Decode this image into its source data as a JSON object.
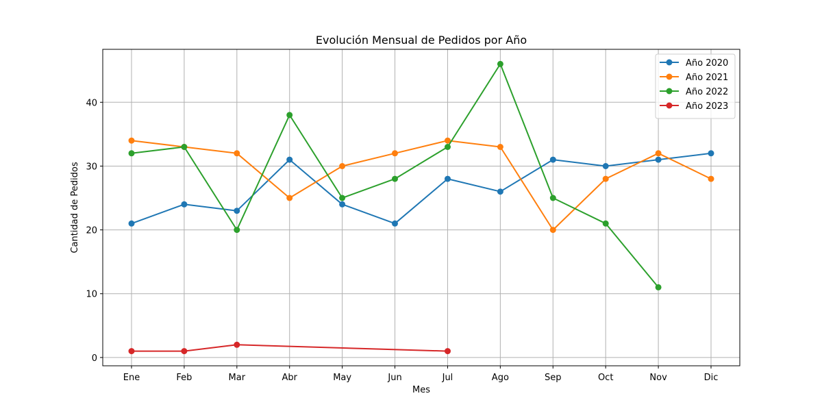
{
  "chart_data": {
    "type": "line",
    "title": "Evolución Mensual de Pedidos por Año",
    "xlabel": "Mes",
    "ylabel": "Cantidad de Pedidos",
    "categories": [
      "Ene",
      "Feb",
      "Mar",
      "Abr",
      "May",
      "Jun",
      "Jul",
      "Ago",
      "Sep",
      "Oct",
      "Nov",
      "Dic"
    ],
    "ylim": [
      -1.3,
      48.3
    ],
    "yticks": [
      0,
      10,
      20,
      30,
      40
    ],
    "grid": true,
    "legend_position": "top-right",
    "series": [
      {
        "name": "Año 2020",
        "color": "#1f77b4",
        "values": [
          21,
          24,
          23,
          31,
          24,
          21,
          28,
          26,
          31,
          30,
          31,
          32
        ]
      },
      {
        "name": "Año 2021",
        "color": "#ff7f0e",
        "values": [
          34,
          33,
          32,
          25,
          30,
          32,
          34,
          33,
          20,
          28,
          32,
          28
        ]
      },
      {
        "name": "Año 2022",
        "color": "#2ca02c",
        "values": [
          32,
          33,
          20,
          38,
          25,
          28,
          33,
          46,
          25,
          21,
          11,
          null
        ]
      },
      {
        "name": "Año 2023",
        "color": "#d62728",
        "values": [
          1,
          1,
          2,
          null,
          null,
          null,
          1,
          null,
          null,
          null,
          null,
          null
        ]
      }
    ]
  }
}
